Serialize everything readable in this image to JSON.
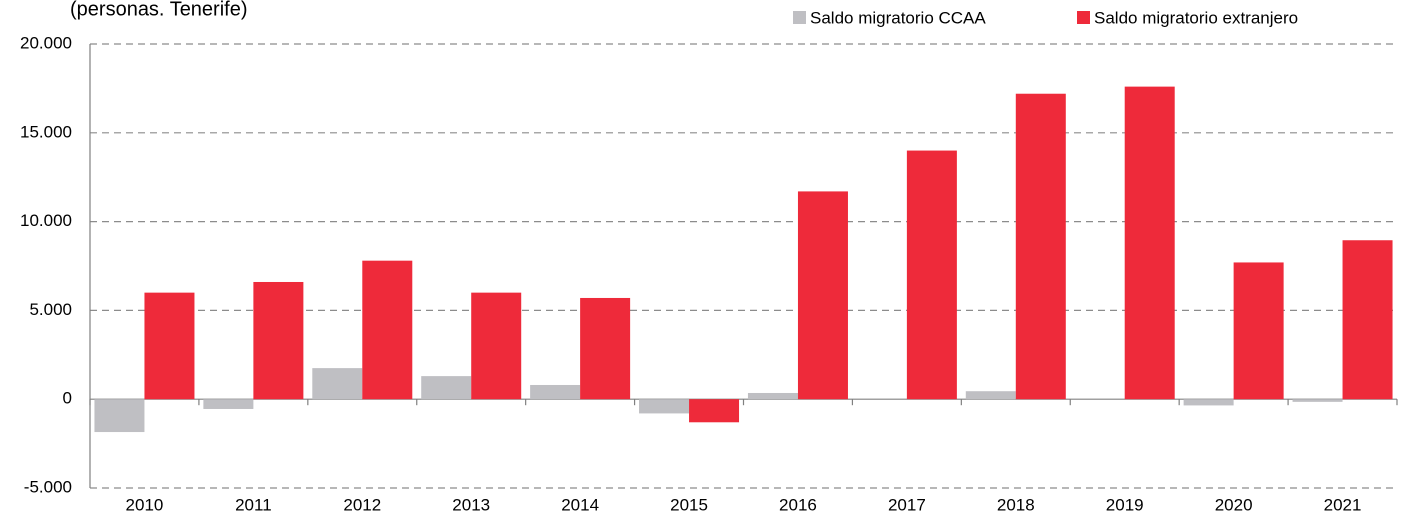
{
  "chart_data": {
    "type": "bar",
    "subtitle": "(personas. Tenerife)",
    "categories": [
      "2010",
      "2011",
      "2012",
      "2013",
      "2014",
      "2015",
      "2016",
      "2017",
      "2018",
      "2019",
      "2020",
      "2021"
    ],
    "series": [
      {
        "name": "Saldo migratorio CCAA",
        "color": "#bfbfc3",
        "values": [
          -1850,
          -550,
          1750,
          1300,
          800,
          -800,
          350,
          0,
          450,
          0,
          -350,
          -150
        ]
      },
      {
        "name": "Saldo migratorio extranjero",
        "color": "#ee2a3a",
        "values": [
          6000,
          6600,
          7800,
          6000,
          5700,
          -1300,
          11700,
          14000,
          17200,
          17600,
          7700,
          8950
        ]
      }
    ],
    "ylim": [
      -5000,
      20000
    ],
    "yticks": [
      {
        "value": -5000,
        "label": "-5.000"
      },
      0,
      {
        "value": 5000,
        "label": "5.000"
      },
      {
        "value": 10000,
        "label": "10.000"
      },
      {
        "value": 15000,
        "label": "15.000"
      },
      {
        "value": 20000,
        "label": "20.000"
      }
    ],
    "grid": true,
    "legend": "top-right"
  }
}
